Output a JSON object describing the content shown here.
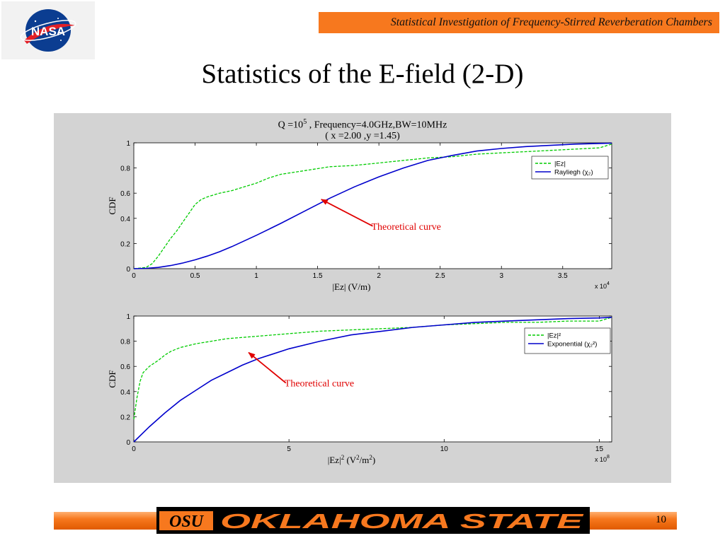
{
  "header": {
    "banner_text": "Statistical Investigation of Frequency-Stirred Reverberation Chambers"
  },
  "slide": {
    "title": "Statistics of the E-field (2-D)",
    "page_number": "10"
  },
  "logos": {
    "nasa_text": "NASA",
    "osu_mark": "OSU",
    "university_text": "OKLAHOMA STATE"
  },
  "figure": {
    "title_line1_pre": "Q =10",
    "title_line1_sup": "5",
    "title_line1_post": " , Frequency=4.0GHz,BW=10MHz",
    "title_line2": "( x =2.00 ,y =1.45)"
  },
  "colors": {
    "measured": "#00cc00",
    "theory": "#0000cc",
    "annotation": "#e00000",
    "banner": "#f7781e",
    "panel": "#d3d3d3"
  },
  "chart_data": [
    {
      "type": "line",
      "xlabel": "|Ez| (V/m)",
      "ylabel": "CDF",
      "x_multiplier": "x 10^4",
      "xlim": [
        0,
        3.9
      ],
      "ylim": [
        0,
        1
      ],
      "xticks": [
        "0",
        "0.5",
        "1",
        "1.5",
        "2",
        "2.5",
        "3",
        "3.5"
      ],
      "yticks": [
        "0",
        "0.2",
        "0.4",
        "0.6",
        "0.8",
        "1"
      ],
      "legend_position": "top-right",
      "annotation": {
        "text": "Theoretical curve",
        "point": [
          1.53,
          0.55
        ],
        "label_at": [
          1.95,
          0.31
        ]
      },
      "series": [
        {
          "name": "|Ez|",
          "style": "dashed",
          "color": "#00cc00",
          "x": [
            0,
            0.1,
            0.15,
            0.2,
            0.25,
            0.3,
            0.35,
            0.4,
            0.45,
            0.5,
            0.55,
            0.6,
            0.7,
            0.8,
            0.9,
            1.0,
            1.1,
            1.2,
            1.4,
            1.6,
            1.8,
            2.0,
            2.2,
            2.4,
            2.6,
            2.8,
            3.0,
            3.2,
            3.4,
            3.6,
            3.8,
            3.9
          ],
          "y": [
            0,
            0.01,
            0.04,
            0.1,
            0.17,
            0.24,
            0.3,
            0.37,
            0.44,
            0.51,
            0.55,
            0.57,
            0.6,
            0.62,
            0.65,
            0.68,
            0.72,
            0.75,
            0.78,
            0.81,
            0.82,
            0.84,
            0.86,
            0.88,
            0.89,
            0.91,
            0.92,
            0.93,
            0.94,
            0.95,
            0.96,
            0.99
          ]
        },
        {
          "name": "Rayliegh  (χ₂)",
          "style": "solid",
          "color": "#0000cc",
          "x": [
            0,
            0.1,
            0.2,
            0.3,
            0.4,
            0.5,
            0.6,
            0.7,
            0.8,
            0.9,
            1.0,
            1.2,
            1.4,
            1.6,
            1.8,
            2.0,
            2.2,
            2.4,
            2.6,
            2.8,
            3.0,
            3.2,
            3.4,
            3.6,
            3.8,
            3.9
          ],
          "y": [
            0,
            0.003,
            0.01,
            0.025,
            0.045,
            0.07,
            0.1,
            0.135,
            0.175,
            0.22,
            0.265,
            0.36,
            0.46,
            0.56,
            0.65,
            0.73,
            0.8,
            0.86,
            0.9,
            0.935,
            0.955,
            0.97,
            0.98,
            0.99,
            0.995,
            0.997
          ]
        }
      ]
    },
    {
      "type": "line",
      "xlabel": "|Ez|^2 (V^2/m^2)",
      "ylabel": "CDF",
      "x_multiplier": "x 10^8",
      "xlim": [
        0,
        15.4
      ],
      "ylim": [
        0,
        1
      ],
      "xticks": [
        "0",
        "5",
        "10",
        "15"
      ],
      "yticks": [
        "0",
        "0.2",
        "0.4",
        "0.6",
        "0.8",
        "1"
      ],
      "legend_position": "top-right",
      "annotation": {
        "text": "Theoretical curve",
        "point": [
          3.7,
          0.71
        ],
        "label_at": [
          4.9,
          0.44
        ]
      },
      "series": [
        {
          "name": "|Ez|²",
          "style": "dashed",
          "color": "#00cc00",
          "x": [
            0,
            0.1,
            0.2,
            0.3,
            0.5,
            0.8,
            1.0,
            1.2,
            1.5,
            2.0,
            2.5,
            3.0,
            4.0,
            5.0,
            6.0,
            7.0,
            8.0,
            9.0,
            10.0,
            11.0,
            12.0,
            13.0,
            14.0,
            15.0,
            15.4
          ],
          "y": [
            0.18,
            0.35,
            0.48,
            0.55,
            0.6,
            0.65,
            0.69,
            0.72,
            0.75,
            0.78,
            0.8,
            0.82,
            0.84,
            0.86,
            0.88,
            0.89,
            0.9,
            0.91,
            0.93,
            0.94,
            0.95,
            0.95,
            0.96,
            0.96,
            0.99
          ]
        },
        {
          "name": "Exponential (χ₂²)",
          "style": "solid",
          "color": "#0000cc",
          "x": [
            0,
            0.5,
            1,
            1.5,
            2,
            2.5,
            3,
            3.5,
            4,
            5,
            6,
            7,
            8,
            9,
            10,
            11,
            12,
            13,
            14,
            15,
            15.4
          ],
          "y": [
            0,
            0.12,
            0.23,
            0.33,
            0.41,
            0.49,
            0.55,
            0.61,
            0.66,
            0.74,
            0.8,
            0.85,
            0.88,
            0.91,
            0.93,
            0.95,
            0.96,
            0.97,
            0.98,
            0.985,
            0.99
          ]
        }
      ]
    }
  ]
}
